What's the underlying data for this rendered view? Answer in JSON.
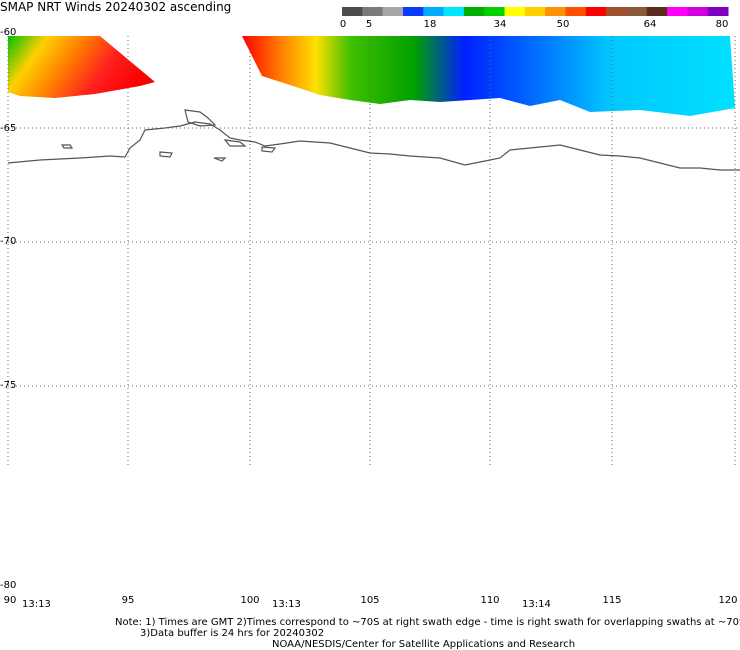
{
  "title": "SMAP NRT Winds 20240302 ascending",
  "color_scale": {
    "labels": [
      "0",
      "5",
      "18",
      "34",
      "50",
      "64",
      "80"
    ],
    "segments": [
      "#4d4d4d",
      "#7a7a7a",
      "#a6a6a6",
      "#0a3cff",
      "#00aaff",
      "#00e6ff",
      "#00b000",
      "#00d000",
      "#ffff00",
      "#ffd000",
      "#ff9000",
      "#ff5000",
      "#ff0000",
      "#a0522d",
      "#8b5a3c",
      "#5a2d1e",
      "#ff00ff",
      "#d000e0",
      "#8000c0"
    ]
  },
  "map": {
    "lat_labels": [
      "-60",
      "-65",
      "-70",
      "-75",
      "-80"
    ],
    "lon_labels": [
      "90",
      "95",
      "100",
      "105",
      "110",
      "115",
      "120"
    ],
    "time_labels": [
      "13:13",
      "13:13",
      "13:14"
    ]
  },
  "notes": {
    "line1": "Note: 1) Times are GMT 2)Times correspond to ~70S at right swath edge - time is right swath for overlapping swaths at ~70S",
    "line2": "3)Data buffer is 24 hrs for 20240302",
    "line3": "NOAA/NESDIS/Center for Satellite Applications and Research"
  }
}
